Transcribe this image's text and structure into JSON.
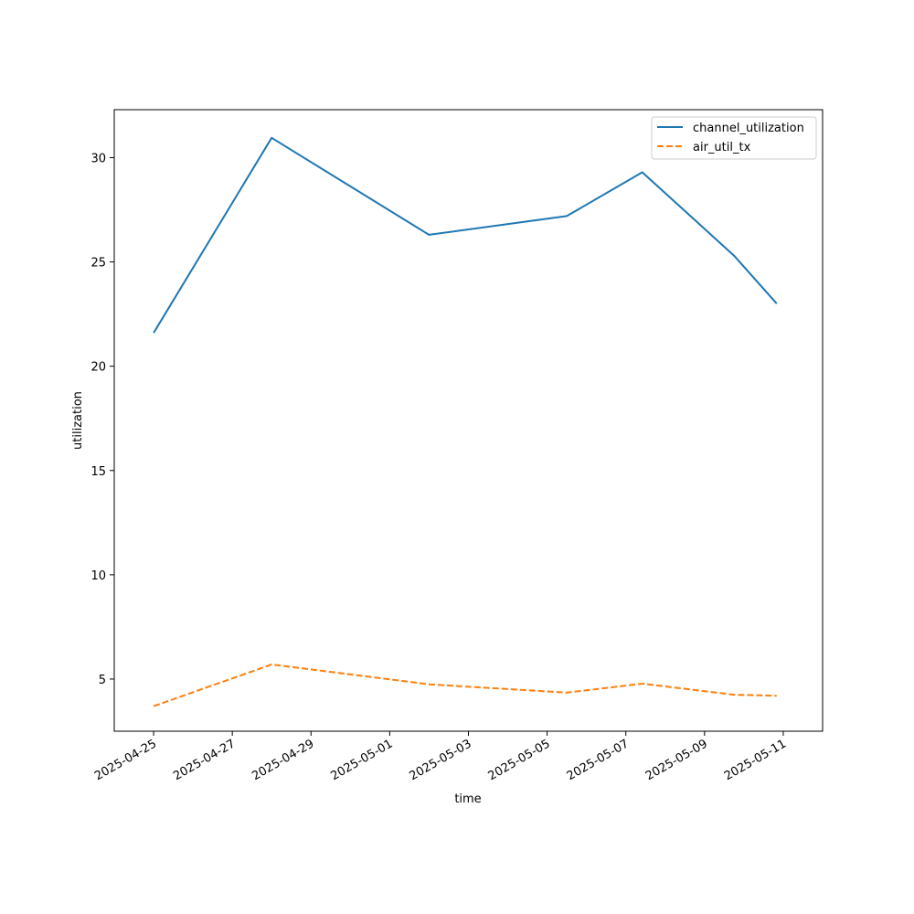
{
  "chart_data": {
    "type": "line",
    "title": "",
    "xlabel": "time",
    "ylabel": "utilization",
    "x_type": "date",
    "xlim": [
      "2025-04-24",
      "2025-05-12"
    ],
    "ylim": [
      2.5,
      32.3
    ],
    "xticks": [
      "2025-04-25",
      "2025-04-27",
      "2025-04-29",
      "2025-05-01",
      "2025-05-03",
      "2025-05-05",
      "2025-05-07",
      "2025-05-09",
      "2025-05-11"
    ],
    "yticks": [
      5,
      10,
      15,
      20,
      25,
      30
    ],
    "grid": false,
    "legend_position": "top-right",
    "series": [
      {
        "name": "channel_utilization",
        "color": "#1f77b4",
        "style": "solid",
        "points": [
          {
            "x": "2025-04-25",
            "y": 21.6
          },
          {
            "x": "2025-04-28",
            "y": 30.95
          },
          {
            "x": "2025-05-02",
            "y": 26.3
          },
          {
            "x": "2025-05-05 12:00",
            "y": 27.2
          },
          {
            "x": "2025-05-07 10:00",
            "y": 29.3
          },
          {
            "x": "2025-05-09 18:00",
            "y": 25.3
          },
          {
            "x": "2025-05-10 20:00",
            "y": 23.0
          }
        ]
      },
      {
        "name": "air_util_tx",
        "color": "#ff7f0e",
        "style": "dashed",
        "points": [
          {
            "x": "2025-04-25",
            "y": 3.7
          },
          {
            "x": "2025-04-28",
            "y": 5.7
          },
          {
            "x": "2025-05-02",
            "y": 4.75
          },
          {
            "x": "2025-05-05 12:00",
            "y": 4.35
          },
          {
            "x": "2025-05-07 10:00",
            "y": 4.78
          },
          {
            "x": "2025-05-09 18:00",
            "y": 4.25
          },
          {
            "x": "2025-05-10 20:00",
            "y": 4.2
          }
        ]
      }
    ]
  }
}
